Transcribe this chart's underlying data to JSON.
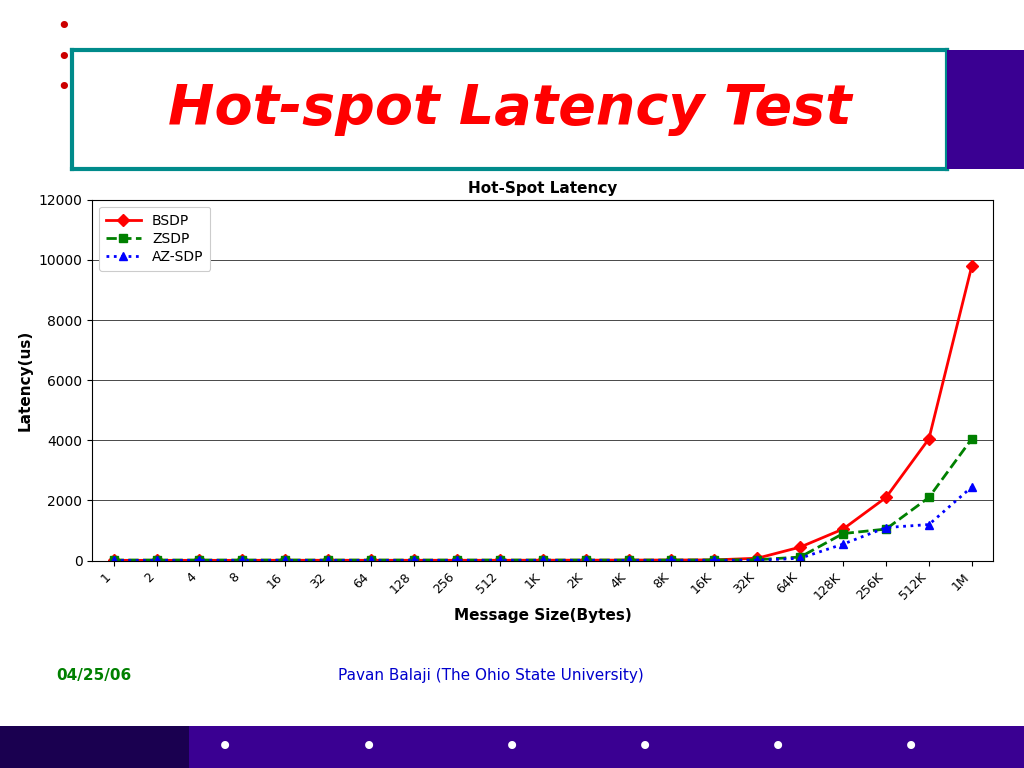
{
  "title": "Hot-Spot Latency",
  "main_title": "Hot-spot Latency Test",
  "xlabel": "Message Size(Bytes)",
  "ylabel": "Latency(us)",
  "xtick_labels": [
    "1",
    "2",
    "4",
    "8",
    "16",
    "32",
    "64",
    "128",
    "256",
    "512",
    "1K",
    "2K",
    "4K",
    "8K",
    "16K",
    "32K",
    "64K",
    "128K",
    "256K",
    "512K",
    "1M"
  ],
  "ylim": [
    0,
    12000
  ],
  "yticks": [
    0,
    2000,
    4000,
    6000,
    8000,
    10000,
    12000
  ],
  "series": {
    "BSDP": {
      "color": "#ff0000",
      "marker": "D",
      "linestyle": "-",
      "linewidth": 2,
      "markersize": 6,
      "values": [
        10,
        10,
        10,
        10,
        12,
        12,
        12,
        12,
        12,
        12,
        15,
        15,
        18,
        20,
        25,
        80,
        450,
        1050,
        2100,
        4050,
        9800
      ]
    },
    "ZSDP": {
      "color": "#008000",
      "marker": "s",
      "linestyle": "--",
      "linewidth": 2,
      "markersize": 6,
      "values": [
        20,
        20,
        20,
        20,
        20,
        20,
        20,
        20,
        20,
        20,
        20,
        20,
        20,
        20,
        25,
        30,
        120,
        900,
        1050,
        2100,
        4050
      ]
    },
    "AZ-SDP": {
      "color": "#0000ff",
      "marker": "^",
      "linestyle": ":",
      "linewidth": 2,
      "markersize": 6,
      "values": [
        5,
        5,
        5,
        5,
        5,
        5,
        5,
        5,
        5,
        5,
        5,
        5,
        5,
        5,
        5,
        10,
        80,
        550,
        1100,
        1200,
        2450
      ]
    }
  },
  "legend_loc": "upper left",
  "background_color": "#ffffff",
  "main_title_color": "#ff0000",
  "main_title_fontsize": 40,
  "date_text": "04/25/06",
  "date_color": "#008000",
  "author_text": "Pavan Balaji (The Ohio State University)",
  "author_color": "#0000cd",
  "teal_color": "#008b8b",
  "purple_color": "#3a0092",
  "bottom_bar_dark": "#1a0050",
  "bottom_dot_color": "#ffffff",
  "dot_positions": [
    0.22,
    0.36,
    0.5,
    0.63,
    0.76,
    0.89
  ]
}
